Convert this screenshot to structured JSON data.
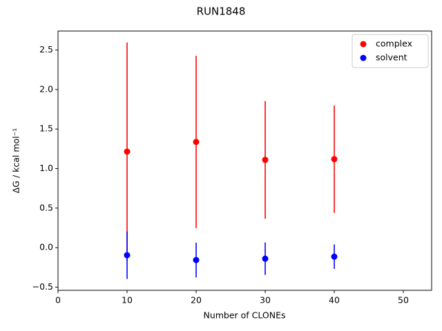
{
  "chart_data": {
    "type": "errorbar-scatter",
    "title": "RUN1848",
    "xlabel": "Number of CLONEs",
    "ylabel": "ΔG / kcal mol⁻¹",
    "xlim": [
      0,
      54.1
    ],
    "ylim": [
      -0.54,
      2.74
    ],
    "xticks": [
      0,
      10,
      20,
      30,
      40,
      50
    ],
    "yticks": [
      {
        "value": -0.5,
        "label": "−0.5"
      },
      {
        "value": 0,
        "label": "0.0"
      },
      {
        "value": 0.5,
        "label": "0.5"
      },
      {
        "value": 1,
        "label": "1.0"
      },
      {
        "value": 1.5,
        "label": "1.5"
      },
      {
        "value": 2,
        "label": "2.0"
      },
      {
        "value": 2.5,
        "label": "2.5"
      }
    ],
    "legend": "upper right",
    "series": [
      {
        "name": "complex",
        "color": "#ff0000",
        "x": [
          10,
          20,
          30,
          40
        ],
        "values": [
          1.215,
          1.337,
          1.11,
          1.119
        ],
        "errors": [
          1.38,
          1.09,
          0.745,
          0.68
        ]
      },
      {
        "name": "solvent",
        "color": "#0000ff",
        "x": [
          10,
          20,
          30,
          40
        ],
        "values": [
          -0.096,
          -0.157,
          -0.14,
          -0.114
        ],
        "errors": [
          0.3,
          0.22,
          0.205,
          0.155
        ]
      }
    ]
  }
}
